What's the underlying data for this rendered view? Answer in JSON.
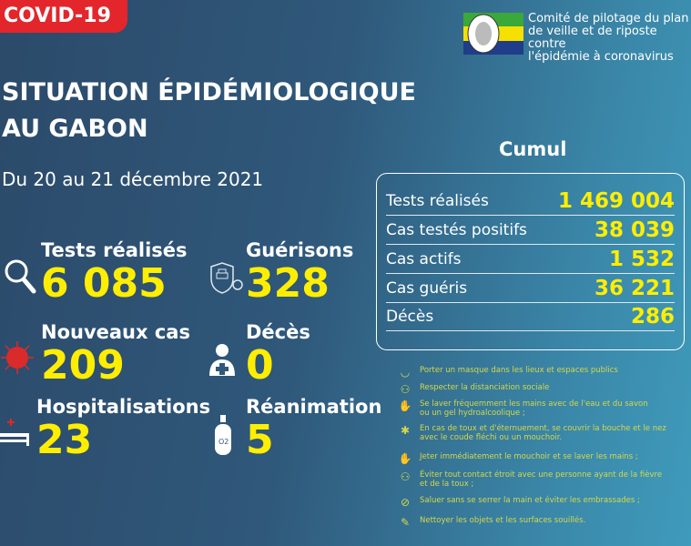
{
  "badge": "COVID-19",
  "title_line1": "SITUATION ÉPIDÉMIOLOGIQUE",
  "title_line2": "AU GABON",
  "date": "Du 20 au 21 décembre 2021",
  "org": {
    "line1": "Comité de pilotage du plan",
    "line2": "de veille et de riposte contre",
    "line3": "l'épidémie à coronavirus"
  },
  "stats": [
    {
      "label": "Tests réalisés",
      "value": "6 085",
      "icon": "magnifier-icon"
    },
    {
      "label": "Guérisons",
      "value": "328",
      "icon": "shield-cross-virus-icon"
    },
    {
      "label": "Nouveaux cas",
      "value": "209",
      "icon": "virus-icon"
    },
    {
      "label": "Décès",
      "value": "0",
      "icon": "person-cross-icon"
    },
    {
      "label": "Hospitalisations",
      "value": "23",
      "icon": "hospital-bed-icon"
    },
    {
      "label": "Réanimation",
      "value": "5",
      "icon": "oxygen-tank-icon"
    }
  ],
  "cumul": {
    "title": "Cumul",
    "rows": [
      {
        "label": "Tests réalisés",
        "value": "1 469 004"
      },
      {
        "label": "Cas testés positifs",
        "value": "38 039"
      },
      {
        "label": "Cas actifs",
        "value": "1 532"
      },
      {
        "label": "Cas guéris",
        "value": "36 221"
      },
      {
        "label": "Décès",
        "value": "286"
      }
    ]
  },
  "tips": [
    {
      "l1": "Porter un masque dans les lieux et espaces publics",
      "l2": ""
    },
    {
      "l1": "Respecter la distanciation sociale",
      "l2": ""
    },
    {
      "l1": "Se laver fréquemment les mains avec de l'eau et du savon",
      "l2": " ou un gel hydroalcoolique ;"
    },
    {
      "l1": "En cas de toux et d'éternuement, se couvrir la bouche et le nez",
      "l2": " avec le coude fléchi ou un mouchoir."
    },
    {
      "l1": "Jeter immédiatement le mouchoir et se laver les mains ;",
      "l2": ""
    },
    {
      "l1": "Éviter tout contact étroit avec une personne ayant de la fièvre",
      "l2": " et de la toux ;"
    },
    {
      "l1": "Saluer sans se serrer la main et éviter les embrassades ;",
      "l2": ""
    },
    {
      "l1": "Nettoyer les objets et les surfaces souillés.",
      "l2": ""
    }
  ],
  "colors": {
    "accent": "#ffee00",
    "badge": "#e3262b",
    "tips": "#d4d84a"
  }
}
